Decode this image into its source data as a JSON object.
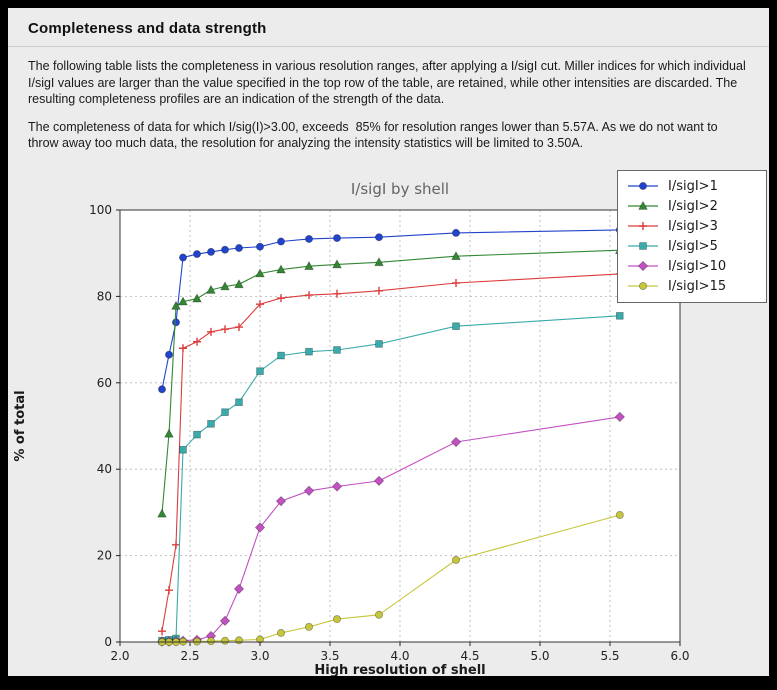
{
  "panel": {
    "title": "Completeness and data strength"
  },
  "paragraphs": [
    "The following table lists the completeness in various resolution ranges, after applying a I/sigI cut. Miller indices for which individual I/sigI values are larger than the value specified in the top row of the table, are retained, while other intensities are discarded. The resulting completeness profiles are an indication of the strength of the data.",
    "The completeness of data for which I/sig(I)>3.00, exceeds  85% for resolution ranges lower than 5.57A. As we do not want to throw away too much data, the resolution for analyzing the intensity statistics will be limited to 3.50A."
  ],
  "colors": {
    "panel_bg": "#ececec",
    "frame": "#000000",
    "plot_bg": "#ffffff",
    "grid": "#b4b4b4",
    "axes_edge": "#333333",
    "legend_border": "#666666"
  },
  "chart_data": {
    "type": "line",
    "title": "I/sigI by shell",
    "xlabel": "High resolution of shell",
    "ylabel": "% of total",
    "xlim": [
      2.0,
      6.0
    ],
    "ylim": [
      0,
      100
    ],
    "xticks": [
      2.0,
      2.5,
      3.0,
      3.5,
      4.0,
      4.5,
      5.0,
      5.5,
      6.0
    ],
    "yticks": [
      0,
      20,
      40,
      60,
      80,
      100
    ],
    "grid": "dashed",
    "legend_position": "upper right",
    "x": [
      2.3,
      2.35,
      2.4,
      2.45,
      2.55,
      2.65,
      2.75,
      2.85,
      3.0,
      3.15,
      3.35,
      3.55,
      3.85,
      4.4,
      5.57
    ],
    "series": [
      {
        "name": "I/sigI>1",
        "color": "#2244cc",
        "marker": "circle",
        "values": [
          58.5,
          66.5,
          74.0,
          89.0,
          89.8,
          90.3,
          90.8,
          91.2,
          91.5,
          92.7,
          93.3,
          93.5,
          93.7,
          94.7,
          95.4
        ]
      },
      {
        "name": "I/sigI>2",
        "color": "#338833",
        "marker": "triangle",
        "values": [
          29.7,
          48.2,
          77.8,
          78.8,
          79.5,
          81.5,
          82.3,
          82.8,
          85.3,
          86.2,
          87.0,
          87.4,
          87.9,
          89.3,
          90.7
        ]
      },
      {
        "name": "I/sigI>3",
        "color": "#dd3c3c",
        "marker": "plus",
        "values": [
          2.5,
          12.0,
          22.5,
          68.0,
          69.5,
          71.8,
          72.4,
          72.9,
          78.2,
          79.6,
          80.3,
          80.6,
          81.3,
          83.1,
          85.2
        ]
      },
      {
        "name": "I/sigI>5",
        "color": "#3aabab",
        "marker": "square",
        "values": [
          0.3,
          0.5,
          0.8,
          44.5,
          48.0,
          50.5,
          53.2,
          55.5,
          62.7,
          66.3,
          67.2,
          67.6,
          69.0,
          73.1,
          75.5
        ]
      },
      {
        "name": "I/sigI>10",
        "color": "#c351c3",
        "marker": "diamond",
        "values": [
          0.1,
          0.1,
          0.2,
          0.3,
          0.5,
          1.4,
          4.9,
          12.3,
          26.5,
          32.6,
          35.0,
          36.0,
          37.3,
          46.3,
          52.1
        ]
      },
      {
        "name": "I/sigI>15",
        "color": "#c6c63e",
        "marker": "circle",
        "values": [
          0.0,
          0.0,
          0.0,
          0.1,
          0.1,
          0.2,
          0.3,
          0.4,
          0.6,
          2.1,
          3.5,
          5.3,
          6.3,
          19.0,
          29.4
        ]
      }
    ]
  }
}
